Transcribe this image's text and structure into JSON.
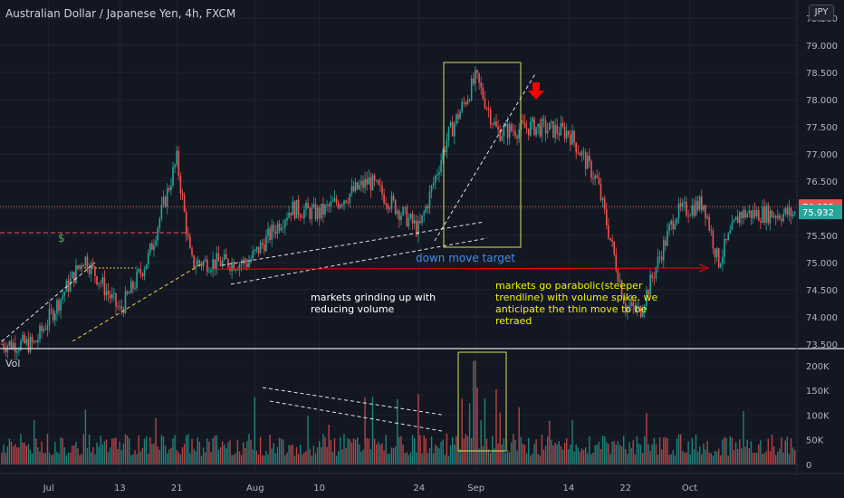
{
  "header": {
    "title": "Australian Dollar / Japanese Yen, 4h, FXCM",
    "currency": "JPY"
  },
  "volume_pane": {
    "label": "Vol"
  },
  "annotations": {
    "grinding": "markets grinding up with reducing volume",
    "parabolic": "markets go parabolic(steeper trendline) with volume spike, we anticipate the thin move to be retraed",
    "target": "down move target",
    "dollar": "$"
  },
  "colors": {
    "background": "#131722",
    "up": "#26a69a",
    "down": "#ef5350",
    "price_line": "#ef5350",
    "box": "#d4e157",
    "arrow": "#ff0000"
  },
  "chart_data": [
    {
      "type": "candlestick",
      "title": "Australian Dollar / Japanese Yen, 4h, FXCM",
      "y_axis_ticks": [
        "73.500",
        "74.000",
        "74.500",
        "75.000",
        "75.500",
        "76.000",
        "76.500",
        "77.000",
        "77.500",
        "78.000",
        "78.500",
        "79.000",
        "79.500"
      ],
      "ylim": [
        73.5,
        79.5
      ],
      "x_axis_ticks": [
        "Jul",
        "13",
        "21",
        "Aug",
        "10",
        "24",
        "Sep",
        "14",
        "22",
        "Oct"
      ],
      "price_labels": [
        {
          "value": "76.032",
          "color": "#ef5350"
        },
        {
          "value": "75.932",
          "color": "#26a69a"
        }
      ],
      "price_path": [
        {
          "x": "Jul 1",
          "y": 73.5
        },
        {
          "x": "Jul 8",
          "y": 75.1
        },
        {
          "x": "Jul 13",
          "y": 74.1
        },
        {
          "x": "Jul 17",
          "y": 75.1
        },
        {
          "x": "Jul 21",
          "y": 76.9
        },
        {
          "x": "Jul 23",
          "y": 75.0
        },
        {
          "x": "Jul 31",
          "y": 75.0
        },
        {
          "x": "Aug 6",
          "y": 76.0
        },
        {
          "x": "Aug 10",
          "y": 75.9
        },
        {
          "x": "Aug 17",
          "y": 76.5
        },
        {
          "x": "Aug 24",
          "y": 75.6
        },
        {
          "x": "Aug 28",
          "y": 77.3
        },
        {
          "x": "Sep 1",
          "y": 78.4
        },
        {
          "x": "Sep 4",
          "y": 77.4
        },
        {
          "x": "Sep 9",
          "y": 77.5
        },
        {
          "x": "Sep 14",
          "y": 77.4
        },
        {
          "x": "Sep 18",
          "y": 76.5
        },
        {
          "x": "Sep 22",
          "y": 74.2
        },
        {
          "x": "Sep 24",
          "y": 74.1
        },
        {
          "x": "Sep 29",
          "y": 75.9
        },
        {
          "x": "Oct 3",
          "y": 76.1
        },
        {
          "x": "Oct 5",
          "y": 75.0
        },
        {
          "x": "Oct 8",
          "y": 75.9
        }
      ]
    },
    {
      "type": "bar",
      "title": "Vol",
      "y_axis_ticks": [
        "0",
        "50K",
        "100K",
        "150K",
        "200K"
      ],
      "ylim": [
        0,
        220000
      ],
      "typical_value": 50000,
      "peak_value": 210000,
      "x_axis_ticks": [
        "Jul",
        "13",
        "21",
        "Aug",
        "10",
        "24",
        "Sep",
        "14",
        "22",
        "Oct"
      ]
    }
  ]
}
